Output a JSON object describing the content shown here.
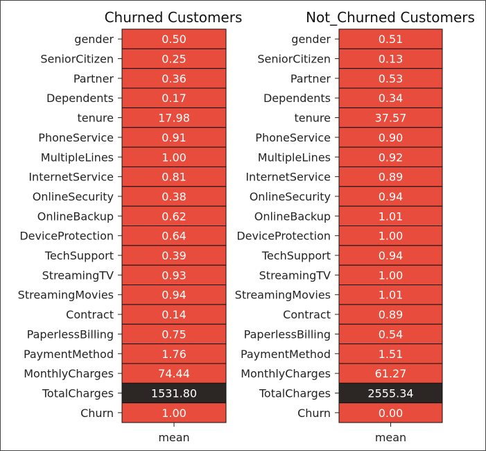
{
  "chart_data": [
    {
      "type": "heatmap",
      "title": "Churned Customers",
      "xlabel": "",
      "ylabel": "",
      "x_categories": [
        "mean"
      ],
      "y_categories": [
        "gender",
        "SeniorCitizen",
        "Partner",
        "Dependents",
        "tenure",
        "PhoneService",
        "MultipleLines",
        "InternetService",
        "OnlineSecurity",
        "OnlineBackup",
        "DeviceProtection",
        "TechSupport",
        "StreamingTV",
        "StreamingMovies",
        "Contract",
        "PaperlessBilling",
        "PaymentMethod",
        "MonthlyCharges",
        "TotalCharges",
        "Churn"
      ],
      "values": [
        0.5,
        0.25,
        0.36,
        0.17,
        17.98,
        0.91,
        1.0,
        0.81,
        0.38,
        0.62,
        0.64,
        0.39,
        0.93,
        0.94,
        0.14,
        0.75,
        1.76,
        74.44,
        1531.8,
        1.0
      ],
      "value_labels": [
        "0.50",
        "0.25",
        "0.36",
        "0.17",
        "17.98",
        "0.91",
        "1.00",
        "0.81",
        "0.38",
        "0.62",
        "0.64",
        "0.39",
        "0.93",
        "0.94",
        "0.14",
        "0.75",
        "1.76",
        "74.44",
        "1531.80",
        "1.00"
      ],
      "colors": {
        "low": "#e74c3c",
        "high": "#2c2725",
        "grid": "#111111"
      }
    },
    {
      "type": "heatmap",
      "title": "Not_Churned Customers",
      "xlabel": "",
      "ylabel": "",
      "x_categories": [
        "mean"
      ],
      "y_categories": [
        "gender",
        "SeniorCitizen",
        "Partner",
        "Dependents",
        "tenure",
        "PhoneService",
        "MultipleLines",
        "InternetService",
        "OnlineSecurity",
        "OnlineBackup",
        "DeviceProtection",
        "TechSupport",
        "StreamingTV",
        "StreamingMovies",
        "Contract",
        "PaperlessBilling",
        "PaymentMethod",
        "MonthlyCharges",
        "TotalCharges",
        "Churn"
      ],
      "values": [
        0.51,
        0.13,
        0.53,
        0.34,
        37.57,
        0.9,
        0.92,
        0.89,
        0.94,
        1.01,
        1.0,
        0.94,
        1.0,
        1.01,
        0.89,
        0.54,
        1.51,
        61.27,
        2555.34,
        0.0
      ],
      "value_labels": [
        "0.51",
        "0.13",
        "0.53",
        "0.34",
        "37.57",
        "0.90",
        "0.92",
        "0.89",
        "0.94",
        "1.01",
        "1.00",
        "0.94",
        "1.00",
        "1.01",
        "0.89",
        "0.54",
        "1.51",
        "61.27",
        "2555.34",
        "0.00"
      ],
      "colors": {
        "low": "#e74c3c",
        "high": "#2c2725",
        "grid": "#111111"
      }
    }
  ]
}
